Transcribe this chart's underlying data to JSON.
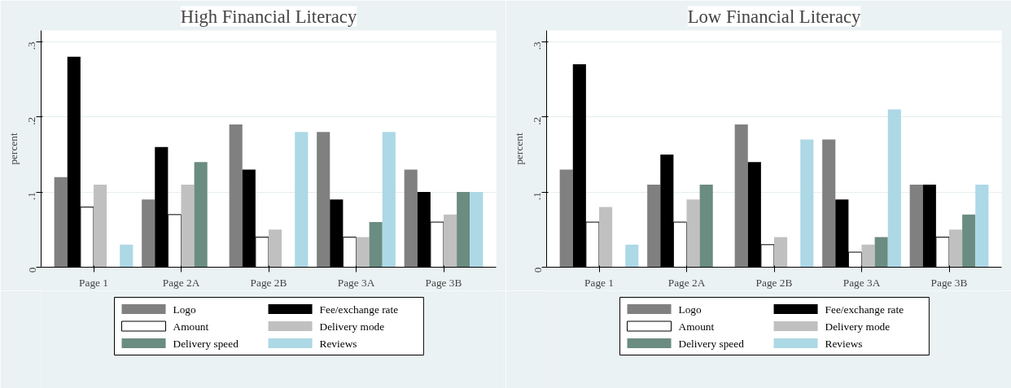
{
  "chart_data": [
    {
      "type": "bar",
      "title": "High Financial Literacy",
      "ylabel": "percent",
      "categories": [
        "Page 1",
        "Page 2A",
        "Page 2B",
        "Page 3A",
        "Page 3B"
      ],
      "ylim": [
        0,
        0.315
      ],
      "yticks": [
        0,
        {
          "value": 0.1,
          "label": ".1"
        },
        {
          "value": 0.2,
          "label": ".2"
        },
        {
          "value": 0.3,
          "label": ".3"
        }
      ],
      "grid": "y",
      "legend": "bottom",
      "series": [
        {
          "name": "Logo",
          "color": "#808080",
          "values": [
            0.12,
            0.09,
            0.19,
            0.18,
            0.13
          ]
        },
        {
          "name": "Fee/exchange rate",
          "color": "#000000",
          "values": [
            0.28,
            0.16,
            0.13,
            0.09,
            0.1
          ]
        },
        {
          "name": "Amount",
          "color": "#ffffff",
          "values": [
            0.08,
            0.07,
            0.04,
            0.04,
            0.06
          ]
        },
        {
          "name": "Delivery mode",
          "color": "#c0c0c0",
          "values": [
            0.11,
            0.11,
            0.05,
            0.04,
            0.07
          ]
        },
        {
          "name": "Delivery speed",
          "color": "#6b8c80",
          "values": [
            0,
            0.14,
            0,
            0.06,
            0.1
          ]
        },
        {
          "name": "Reviews",
          "color": "#add8e6",
          "values": [
            0.03,
            0,
            0.18,
            0.18,
            0.1
          ]
        }
      ]
    },
    {
      "type": "bar",
      "title": "Low Financial Literacy",
      "ylabel": "percent",
      "categories": [
        "Page 1",
        "Page 2A",
        "Page 2B",
        "Page 3A",
        "Page 3B"
      ],
      "ylim": [
        0,
        0.315
      ],
      "yticks": [
        0,
        {
          "value": 0.1,
          "label": ".1"
        },
        {
          "value": 0.2,
          "label": ".2"
        },
        {
          "value": 0.3,
          "label": ".3"
        }
      ],
      "grid": "y",
      "legend": "bottom",
      "series": [
        {
          "name": "Logo",
          "color": "#808080",
          "values": [
            0.13,
            0.11,
            0.19,
            0.17,
            0.11
          ]
        },
        {
          "name": "Fee/exchange rate",
          "color": "#000000",
          "values": [
            0.27,
            0.15,
            0.14,
            0.09,
            0.11
          ]
        },
        {
          "name": "Amount",
          "color": "#ffffff",
          "values": [
            0.06,
            0.06,
            0.03,
            0.02,
            0.04
          ]
        },
        {
          "name": "Delivery mode",
          "color": "#c0c0c0",
          "values": [
            0.08,
            0.09,
            0.04,
            0.03,
            0.05
          ]
        },
        {
          "name": "Delivery speed",
          "color": "#6b8c80",
          "values": [
            0,
            0.11,
            0,
            0.04,
            0.07
          ]
        },
        {
          "name": "Reviews",
          "color": "#add8e6",
          "values": [
            0.03,
            0,
            0.17,
            0.21,
            0.11
          ]
        }
      ]
    }
  ]
}
